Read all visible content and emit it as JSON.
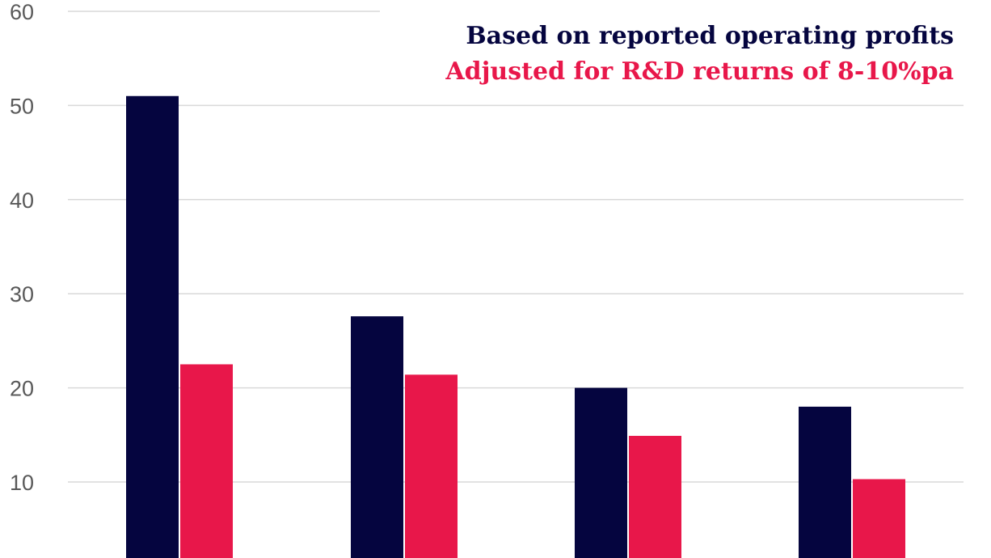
{
  "chart_data": {
    "type": "bar",
    "categories": [
      "",
      "",
      "",
      ""
    ],
    "series": [
      {
        "name": "Based on reported operating profits",
        "color": "#05053f",
        "values": [
          51,
          27.6,
          20.0,
          18.0
        ]
      },
      {
        "name": "Adjusted for R&D returns of 8-10%pa",
        "color": "#e8174a",
        "values": [
          22.5,
          21.4,
          14.9,
          10.3
        ]
      }
    ],
    "y_ticks": [
      10,
      20,
      30,
      40,
      50,
      60
    ],
    "y_tick_labels": [
      "10",
      "20",
      "30",
      "40",
      "50",
      "60"
    ],
    "ylim": [
      4,
      60
    ],
    "grid": true,
    "legend_placement": "top-right",
    "title": "",
    "xlabel": "",
    "ylabel": ""
  }
}
